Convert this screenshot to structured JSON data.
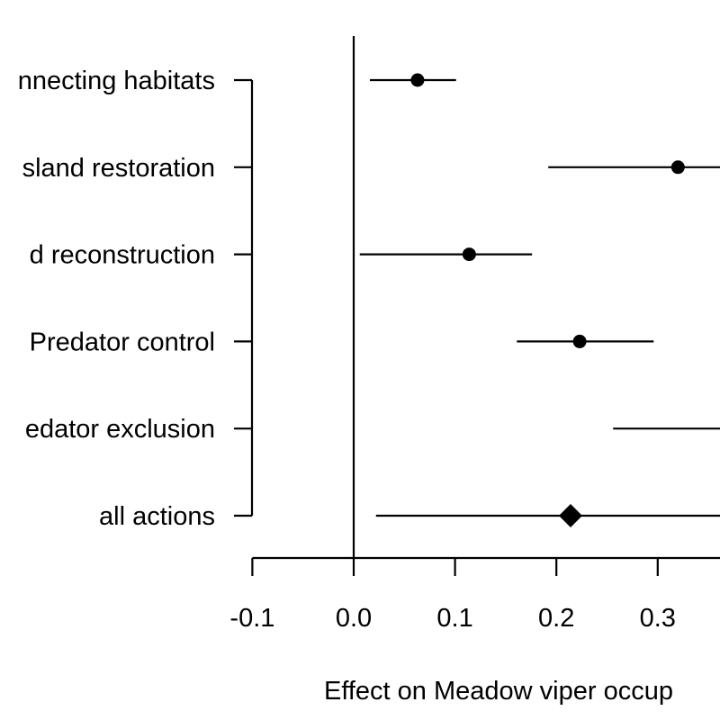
{
  "chart_data": {
    "type": "forest",
    "title": "",
    "xlabel": "Effect on Meadow viper occup",
    "ylabel": "",
    "xlim": [
      -0.1,
      0.3
    ],
    "x_ticks": [
      {
        "value": -0.1,
        "label": "-0.1"
      },
      {
        "value": 0.0,
        "label": "0.0"
      },
      {
        "value": 0.1,
        "label": "0.1"
      },
      {
        "value": 0.2,
        "label": "0.2"
      },
      {
        "value": 0.3,
        "label": "0.3"
      }
    ],
    "reference_line": 0.0,
    "categories": [
      "nnecting habitats",
      "sland restoration",
      "d reconstruction",
      "Predator control",
      "edator exclusion",
      "all actions"
    ],
    "estimates": [
      {
        "category": "nnecting habitats",
        "estimate": 0.063,
        "lower": 0.016,
        "upper": 0.101,
        "marker": "circle"
      },
      {
        "category": "sland restoration",
        "estimate": 0.32,
        "lower": 0.192,
        "upper": 0.45,
        "marker": "circle"
      },
      {
        "category": "d reconstruction",
        "estimate": 0.114,
        "lower": 0.006,
        "upper": 0.176,
        "marker": "circle"
      },
      {
        "category": "Predator control",
        "estimate": 0.223,
        "lower": 0.161,
        "upper": 0.296,
        "marker": "circle"
      },
      {
        "category": "edator exclusion",
        "estimate": null,
        "lower": 0.256,
        "upper": 0.45,
        "marker": "circle"
      },
      {
        "category": "all actions",
        "estimate": 0.214,
        "lower": 0.022,
        "upper": 0.45,
        "marker": "diamond"
      }
    ],
    "grid": false,
    "legend": "none"
  }
}
